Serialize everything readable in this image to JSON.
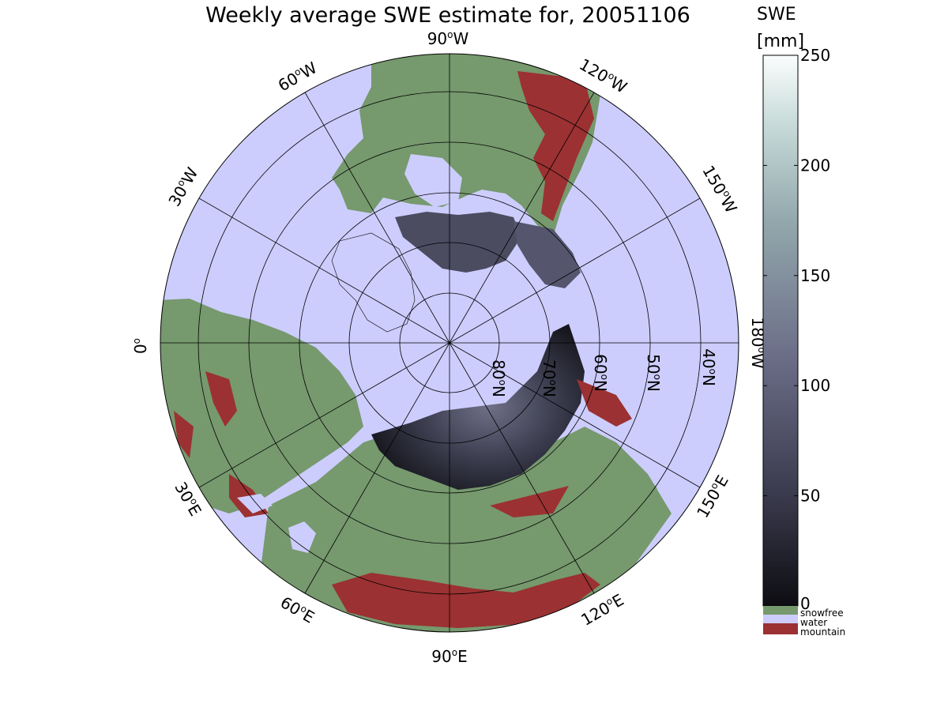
{
  "title": "Weekly average SWE estimate for, 20051106",
  "colorbar": {
    "label_line1": "SWE",
    "label_line2": "[mm]",
    "ticks": [
      "0",
      "50",
      "100",
      "150",
      "200",
      "250"
    ],
    "tick_values": [
      0,
      50,
      100,
      150,
      200,
      250
    ],
    "range": [
      0,
      250
    ],
    "categories": [
      {
        "label": "snowfree",
        "color": "#76996e"
      },
      {
        "label": "water",
        "color": "#cccdfd"
      },
      {
        "label": "mountain",
        "color": "#9b3132"
      }
    ]
  },
  "map": {
    "projection": "north polar stereographic",
    "longitude_labels": {
      "lon_90w": "90",
      "lon_60w": "60",
      "lon_30w": "30",
      "lon_0": "0",
      "lon_120w": "120",
      "lon_150w": "150",
      "lon_180w": "180",
      "lon_150e": "150",
      "lon_120e": "120",
      "lon_90e": "90",
      "lon_60e": "60",
      "lon_30e": "30"
    },
    "longitude_suffixes": {
      "w": "W",
      "e": "E",
      "degree": "o"
    },
    "latitude_labels": [
      "80",
      "70",
      "60",
      "50",
      "40"
    ],
    "latitude_suffix": "N",
    "colors": {
      "snowfree": "#76996e",
      "water": "#cccdfd",
      "mountain": "#9b3132",
      "swe_low": "#0d0d12",
      "swe_mid": "#5f607b",
      "swe_high": "#fbfdfd",
      "grid": "#000000"
    }
  }
}
